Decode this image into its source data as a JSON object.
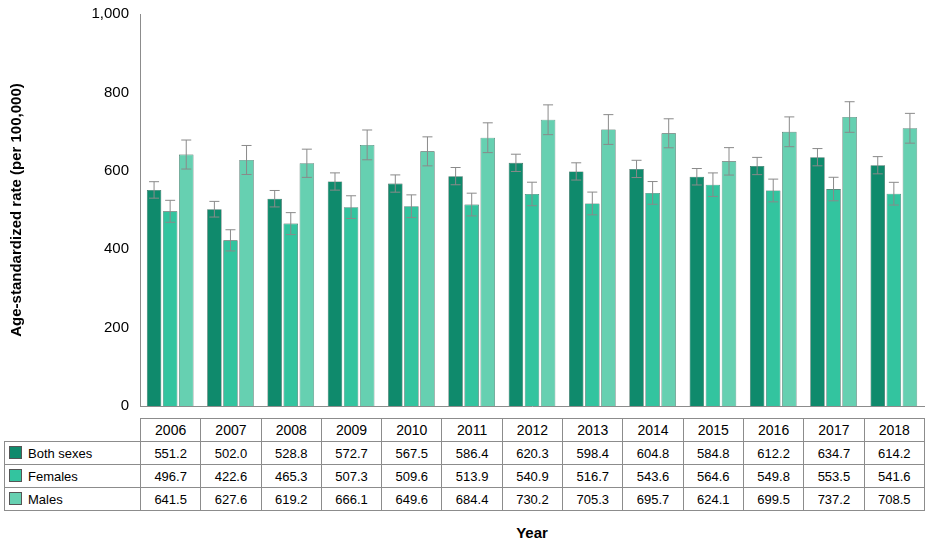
{
  "chart_data": {
    "type": "bar",
    "categories": [
      "2006",
      "2007",
      "2008",
      "2009",
      "2010",
      "2011",
      "2012",
      "2013",
      "2014",
      "2015",
      "2016",
      "2017",
      "2018"
    ],
    "x_label": "Year",
    "y_label": "Age-standardized rate (per 100,000)",
    "ylim": [
      0,
      1000
    ],
    "yticks": [
      0,
      200,
      400,
      600,
      800,
      {
        "value": 1000,
        "label": "1,000"
      }
    ],
    "grid": false,
    "legend": "bottom",
    "series": [
      {
        "name": "Both sexes",
        "color": "#0f8a6c",
        "values": [
          551.2,
          502.0,
          528.8,
          572.7,
          567.5,
          586.4,
          620.3,
          598.4,
          604.8,
          584.8,
          612.2,
          634.7,
          614.2
        ],
        "value_labels": [
          "551.2",
          "502.0",
          "528.8",
          "572.7",
          "567.5",
          "586.4",
          "620.3",
          "598.4",
          "604.8",
          "584.8",
          "612.2",
          "634.7",
          "614.2"
        ],
        "error": [
          21,
          20,
          21,
          22,
          22,
          22,
          22,
          22,
          22,
          21,
          22,
          22,
          22
        ]
      },
      {
        "name": "Females",
        "color": "#33c49f",
        "values": [
          496.7,
          422.6,
          465.3,
          507.3,
          509.6,
          513.9,
          540.9,
          516.7,
          543.6,
          564.6,
          549.8,
          553.5,
          541.6
        ],
        "value_labels": [
          "496.7",
          "422.6",
          "465.3",
          "507.3",
          "509.6",
          "513.9",
          "540.9",
          "516.7",
          "543.6",
          "564.6",
          "549.8",
          "553.5",
          "541.6"
        ],
        "error": [
          28,
          27,
          28,
          29,
          29,
          29,
          30,
          29,
          29,
          30,
          29,
          30,
          29
        ]
      },
      {
        "name": "Males",
        "color": "#66d0b1",
        "values": [
          641.5,
          627.6,
          619.2,
          666.1,
          649.6,
          684.4,
          730.2,
          705.3,
          695.7,
          624.1,
          699.5,
          737.2,
          708.5
        ],
        "value_labels": [
          "641.5",
          "627.6",
          "619.2",
          "666.1",
          "649.6",
          "684.4",
          "730.2",
          "705.3",
          "695.7",
          "624.1",
          "699.5",
          "737.2",
          "708.5"
        ],
        "error": [
          37,
          37,
          36,
          38,
          37,
          38,
          38,
          38,
          37,
          35,
          38,
          39,
          38
        ]
      }
    ]
  }
}
